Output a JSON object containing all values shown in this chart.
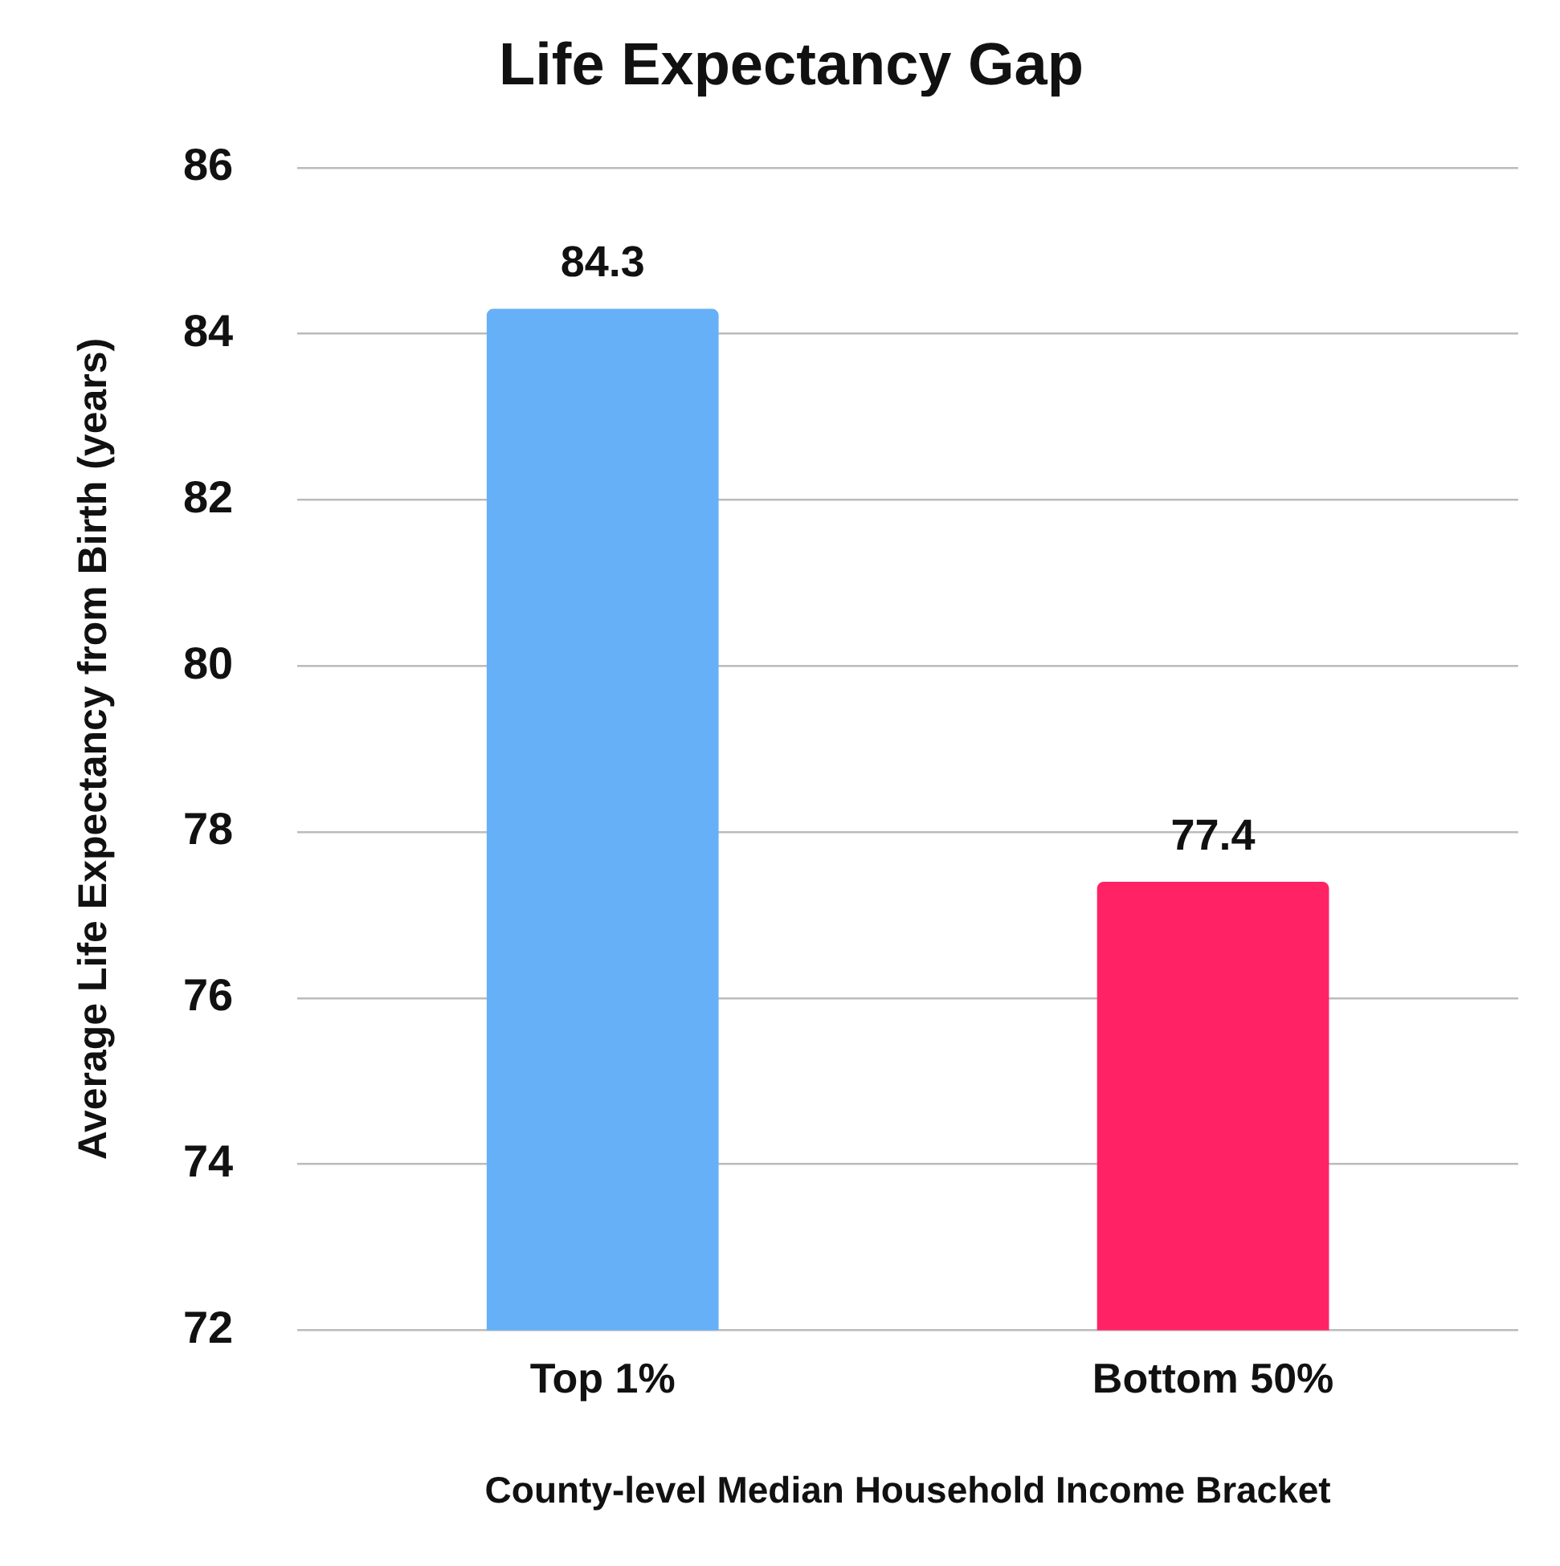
{
  "chart_data": {
    "type": "bar",
    "title": "Life Expectancy Gap",
    "xlabel": "County-level Median Household Income Bracket",
    "ylabel": "Average Life Expectancy from Birth (years)",
    "categories": [
      "Top 1%",
      "Bottom 50%"
    ],
    "values": [
      84.3,
      77.4
    ],
    "colors": [
      "#66b0f8",
      "#ff2366"
    ],
    "ylim": [
      72,
      86
    ],
    "yticks": [
      72,
      74,
      76,
      78,
      80,
      82,
      84,
      86
    ],
    "grid": "y",
    "data_labels": true,
    "legend": false
  }
}
